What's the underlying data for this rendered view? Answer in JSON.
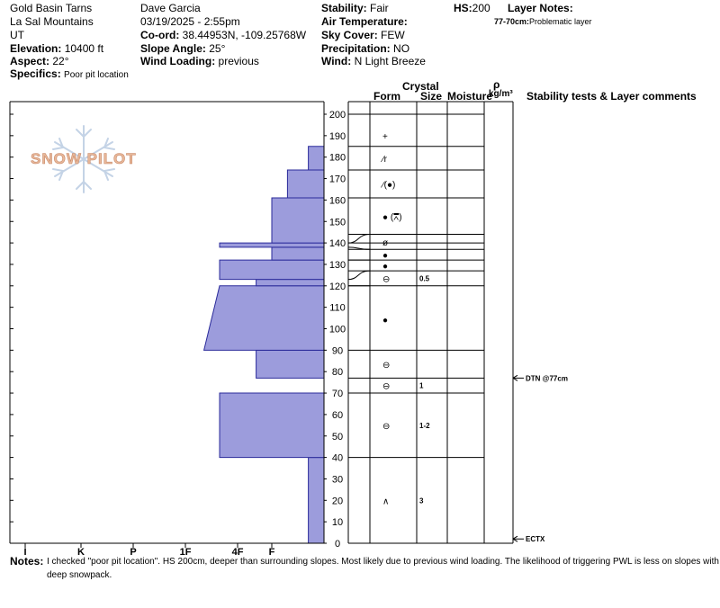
{
  "header": {
    "location": "Gold Basin Tarns",
    "range": "La Sal Mountains",
    "state": "UT",
    "elevation_label": "Elevation:",
    "elevation_value": "10400 ft",
    "aspect_label": "Aspect:",
    "aspect_value": "22°",
    "specifics_label": "Specifics:",
    "specifics_value": "Poor pit location",
    "observer": "Dave Garcia",
    "datetime": "03/19/2025 - 2:55pm",
    "coord_label": "Co-ord:",
    "coord_value": "38.44953N, -109.25768W",
    "slope_label": "Slope Angle:",
    "slope_value": "25°",
    "wind_loading_label": "Wind Loading:",
    "wind_loading_value": "previous",
    "stability_label": "Stability:",
    "stability_value": "Fair",
    "air_temp_label": "Air Temperature:",
    "air_temp_value": "",
    "sky_label": "Sky Cover:",
    "sky_value": "FEW",
    "precip_label": "Precipitation:",
    "precip_value": "NO",
    "wind_label": "Wind:",
    "wind_value": "N Light Breeze",
    "hs_label": "HS:",
    "hs_value": "200",
    "layer_notes_label": "Layer Notes:",
    "layer_note_1_depth": "77-70cm:",
    "layer_note_1_text": "Problematic layer"
  },
  "logo": {
    "text": "SNOW PILOT",
    "color": "#e8b89a"
  },
  "columns": {
    "crystal": "Crystal",
    "form": "Form",
    "size": "Size",
    "moisture": "Moisture",
    "rho": "ρ",
    "density_unit": "kg/m³",
    "stability_tests": "Stability tests & Layer comments"
  },
  "hardness_axis": [
    "I",
    "K",
    "P",
    "1F",
    "4F",
    "F"
  ],
  "colors": {
    "profile_fill": "#9c9cdc",
    "profile_stroke": "#2a2a9a"
  },
  "chart_data": {
    "type": "bar",
    "description_free": true,
    "y_unit": "cm",
    "ylim": [
      0,
      200
    ],
    "y_ticks": [
      0,
      10,
      20,
      30,
      40,
      50,
      60,
      70,
      80,
      90,
      100,
      110,
      120,
      130,
      140,
      150,
      160,
      170,
      180,
      190,
      200
    ],
    "hardness_scale": {
      "F": 0,
      "4F": 1,
      "1F": 2,
      "P": 3,
      "K": 4,
      "I": 5
    },
    "layers": [
      {
        "bottom": 0,
        "top": 40,
        "hardness_bottom": 0.3,
        "hardness_top": 0.3
      },
      {
        "bottom": 40,
        "top": 70,
        "hardness_bottom": 2.0,
        "hardness_top": 2.0
      },
      {
        "bottom": 70,
        "top": 77,
        "hardness_bottom": 0.0,
        "hardness_top": 0.0
      },
      {
        "bottom": 77,
        "top": 90,
        "hardness_bottom": 1.3,
        "hardness_top": 1.3
      },
      {
        "bottom": 90,
        "top": 120,
        "hardness_bottom": 2.3,
        "hardness_top": 2.0
      },
      {
        "bottom": 120,
        "top": 123,
        "hardness_bottom": 1.3,
        "hardness_top": 1.3
      },
      {
        "bottom": 123,
        "top": 132,
        "hardness_bottom": 2.0,
        "hardness_top": 2.0
      },
      {
        "bottom": 132,
        "top": 138,
        "hardness_bottom": 1.0,
        "hardness_top": 1.0
      },
      {
        "bottom": 138,
        "top": 140,
        "hardness_bottom": 2.0,
        "hardness_top": 2.0
      },
      {
        "bottom": 140,
        "top": 161,
        "hardness_bottom": 1.0,
        "hardness_top": 1.0
      },
      {
        "bottom": 161,
        "top": 174,
        "hardness_bottom": 0.7,
        "hardness_top": 0.7
      },
      {
        "bottom": 174,
        "top": 185,
        "hardness_bottom": 0.3,
        "hardness_top": 0.3
      },
      {
        "bottom": 185,
        "top": 200,
        "hardness_bottom": 0.0,
        "hardness_top": 0.0
      }
    ],
    "layer_boundaries": [
      40,
      70,
      77,
      90,
      120,
      127,
      132,
      137,
      140,
      144,
      161,
      174,
      185,
      200
    ],
    "connector_heights": [
      {
        "profile": 140,
        "table": 144
      },
      {
        "profile": 138,
        "table": 137
      },
      {
        "profile": 132,
        "table": 132
      },
      {
        "profile": 123,
        "table": 127
      },
      {
        "profile": 120,
        "table": 120
      }
    ],
    "crystal_forms": [
      {
        "height": 190,
        "symbol": "+"
      },
      {
        "height": 179.5,
        "symbol": "∕r"
      },
      {
        "height": 167.5,
        "symbol": "∕(●)"
      },
      {
        "height": 152.5,
        "symbol": "● (⩞)"
      },
      {
        "height": 140.5,
        "symbol": "ø"
      },
      {
        "height": 134.5,
        "symbol": "●"
      },
      {
        "height": 129.5,
        "symbol": "●"
      },
      {
        "height": 123.5,
        "symbol": "⊖"
      },
      {
        "height": 104.5,
        "symbol": "●"
      },
      {
        "height": 83.5,
        "symbol": "⊖"
      },
      {
        "height": 73.5,
        "symbol": "⊖"
      },
      {
        "height": 55,
        "symbol": "⊖"
      },
      {
        "height": 20,
        "symbol": "∧"
      }
    ],
    "crystal_sizes": [
      {
        "height": 123.5,
        "value": "0.5"
      },
      {
        "height": 73.5,
        "value": "1"
      },
      {
        "height": 55,
        "value": "1-2"
      },
      {
        "height": 20,
        "value": "3"
      }
    ],
    "stability_tests": [
      {
        "height": 77,
        "label": "DTN @77cm"
      },
      {
        "height": 2,
        "label": "ECTX"
      }
    ]
  },
  "notes_label": "Notes:",
  "notes_line1": "I checked \"poor pit location\". HS 200cm, deeper than surrounding slopes. Most likely due to previous wind loading. The likelihood of triggering PWL is less on slopes with a",
  "notes_line2": "deep snowpack."
}
